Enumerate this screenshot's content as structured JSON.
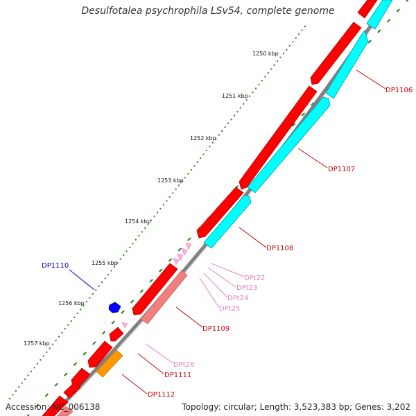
{
  "title": "Desulfotalea psychrophila LSv54, complete genome",
  "footer": {
    "accession": "Accession: NC_006138",
    "summary": "Topology: circular; Length: 3,523,383 bp; Genes: 3,202"
  },
  "colors": {
    "backbone": "#808080",
    "kbp_tick": "#2e7d20",
    "cds_forward": "#ff0000",
    "cds_reverse": "#00ffff",
    "pseudo": "#f08080",
    "trna": "#ffb0d8",
    "misc": "#0000ff",
    "other": "#ff9900",
    "label_red": "#cc0000",
    "label_pink": "#e97fc0",
    "label_blue": "#0000cc"
  },
  "kbp_labels": [
    "1250 kbp",
    "1251 kbp",
    "1252 kbp",
    "1253 kbp",
    "1254 kbp",
    "1255 kbp",
    "1256 kbp",
    "1257 kbp"
  ],
  "gene_labels": {
    "dp1106": "DP1106",
    "dp1107": "DP1107",
    "dp1108": "DP1108",
    "dp1109": "DP1109",
    "dp1110": "DP1110",
    "dp1111": "DP1111",
    "dp1112": "DP1112",
    "dpt22": "DPt22",
    "dpt23": "DPt23",
    "dpt24": "DPt24",
    "dpt25": "DPt25",
    "dpt26": "DPt26"
  }
}
